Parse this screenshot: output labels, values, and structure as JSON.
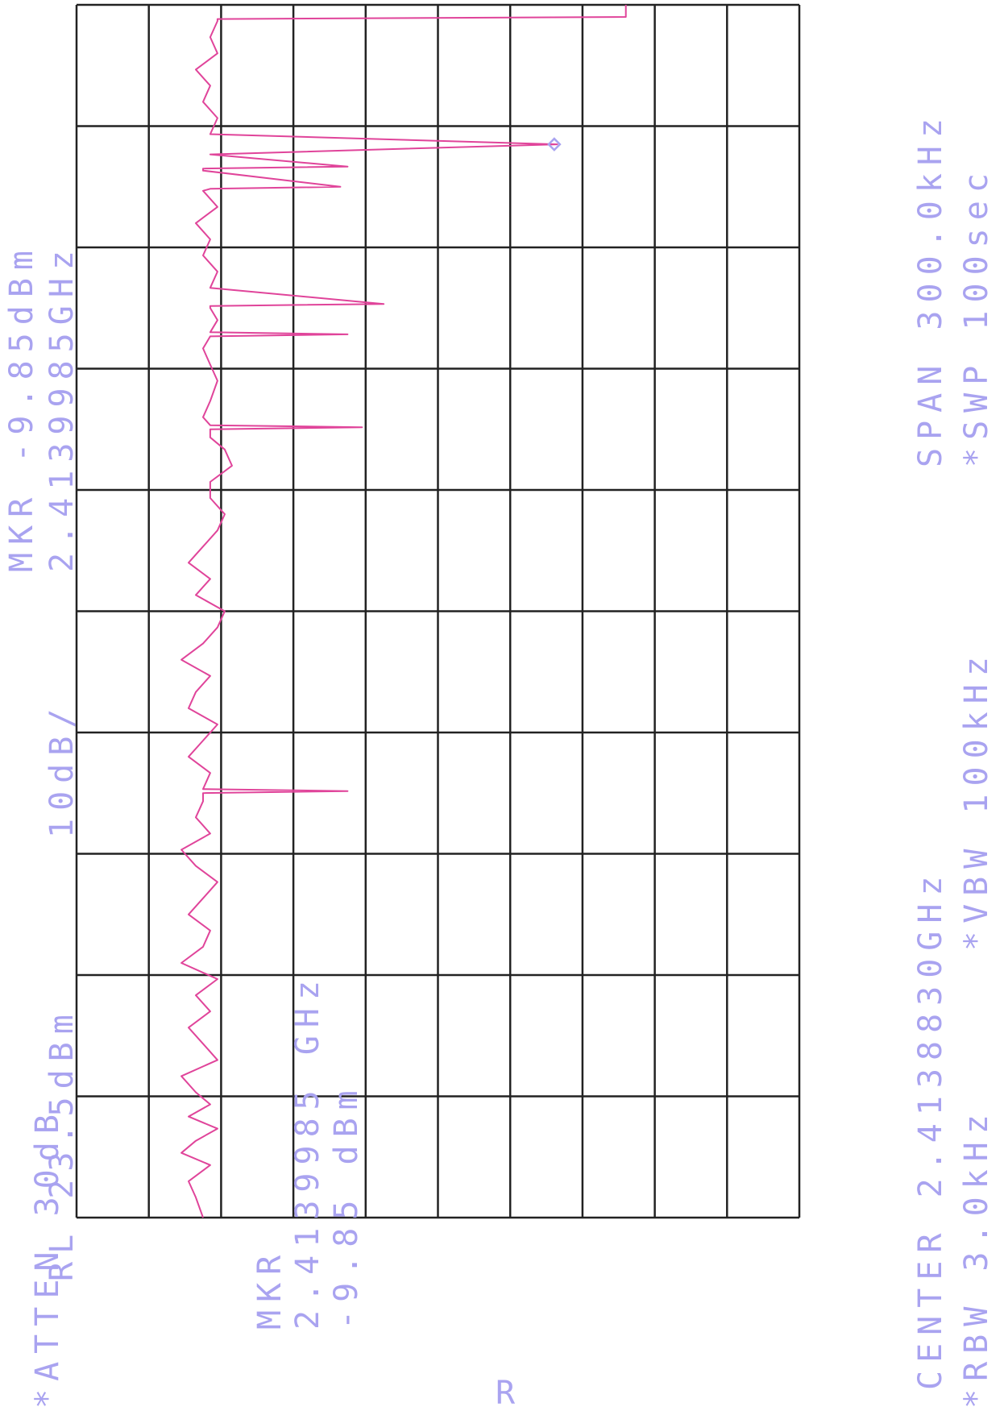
{
  "header": {
    "atten": "*ATTEN 30dB",
    "ref_level": "RL 23.5dBm",
    "scale": "10dB/",
    "marker_label": "MKR -9.85dBm",
    "marker_freq": "2.4139985GHz",
    "span": "SPAN 300.0kHz",
    "sweep": "*SWP 100sec"
  },
  "footer": {
    "center": "CENTER 2.4138830GHz",
    "rbw": "*RBW 3.0kHz",
    "vbw": "*VBW 100kHz"
  },
  "marker_readout": {
    "line1": "MKR",
    "line2": "2.4139985 GHz",
    "line3": "-9.85 dBm"
  },
  "trace_label": "R",
  "colors": {
    "trace": "#e0449a",
    "annotation": "#a9a3f0",
    "grid": "#222222"
  },
  "chart_data": {
    "type": "line",
    "xlabel": "",
    "ylabel": "",
    "x_unit": "GHz",
    "y_unit": "dBm",
    "xlim": [
      2.413733,
      2.414033
    ],
    "ylim": [
      -76.5,
      23.5
    ],
    "grid": true,
    "divisions": {
      "x": 10,
      "y": 10
    },
    "marker": {
      "x": 2.4139985,
      "y": -9.85
    },
    "series": [
      {
        "x": [
          2.413733,
          2.413738,
          2.413742,
          2.413746,
          2.413749,
          2.413752,
          2.413755,
          2.413758,
          2.413761,
          2.413764,
          2.413768,
          2.413772,
          2.413776,
          2.41378,
          2.413784,
          2.413788,
          2.413792,
          2.413796,
          2.4138,
          2.413804,
          2.413808,
          2.413812,
          2.413816,
          2.41382,
          2.413824,
          2.413828,
          2.413832,
          2.413836,
          2.413838,
          2.4138385,
          2.413839,
          2.413843,
          2.413847,
          2.413851,
          2.413855,
          2.413859,
          2.413863,
          2.413867,
          2.413871,
          2.413875,
          2.413879,
          2.413883,
          2.413887,
          2.413891,
          2.413895,
          2.413899,
          2.413903,
          2.413907,
          2.413911,
          2.413915,
          2.413919,
          2.413923,
          2.413926,
          2.413928,
          2.4139285,
          2.413929,
          2.413931,
          2.413935,
          2.41394,
          2.413944,
          2.413948,
          2.413951,
          2.4139515,
          2.413952,
          2.413955,
          2.413958,
          2.4139585,
          2.413959,
          2.413963,
          2.413967,
          2.413971,
          2.413975,
          2.413979,
          2.413983,
          2.413987,
          2.4139875,
          2.413988,
          2.413992,
          2.4139925,
          2.413993,
          2.413996,
          2.4139985,
          2.414001,
          2.414005,
          2.414009,
          2.414013,
          2.414017,
          2.414021,
          2.414025,
          2.414029,
          2.4140295,
          2.41403,
          2.414031,
          2.414033
        ],
        "y": [
          -59,
          -60,
          -61,
          -58,
          -62,
          -60,
          -57,
          -61,
          -58,
          -60,
          -62,
          -57,
          -59,
          -61,
          -58,
          -60,
          -57,
          -62,
          -59,
          -58,
          -61,
          -59,
          -57,
          -60,
          -62,
          -58,
          -60,
          -59,
          -59,
          -39,
          -59,
          -58,
          -61,
          -59,
          -57,
          -61,
          -60,
          -58,
          -62,
          -59,
          -57,
          -56,
          -60,
          -58,
          -61,
          -59,
          -57,
          -56,
          -58,
          -58,
          -55,
          -56,
          -58,
          -58,
          -37,
          -58,
          -59,
          -58,
          -57,
          -58,
          -59,
          -58,
          -39,
          -58,
          -57,
          -58,
          -58,
          -34,
          -58,
          -57,
          -59,
          -58,
          -60,
          -57,
          -59,
          -58,
          -40,
          -59,
          -59,
          -39,
          -58,
          -10,
          -58,
          -57,
          -59,
          -58,
          -60,
          -57,
          -58,
          -57,
          -57,
          -0.5,
          -0.5,
          -0.5
        ]
      }
    ]
  }
}
